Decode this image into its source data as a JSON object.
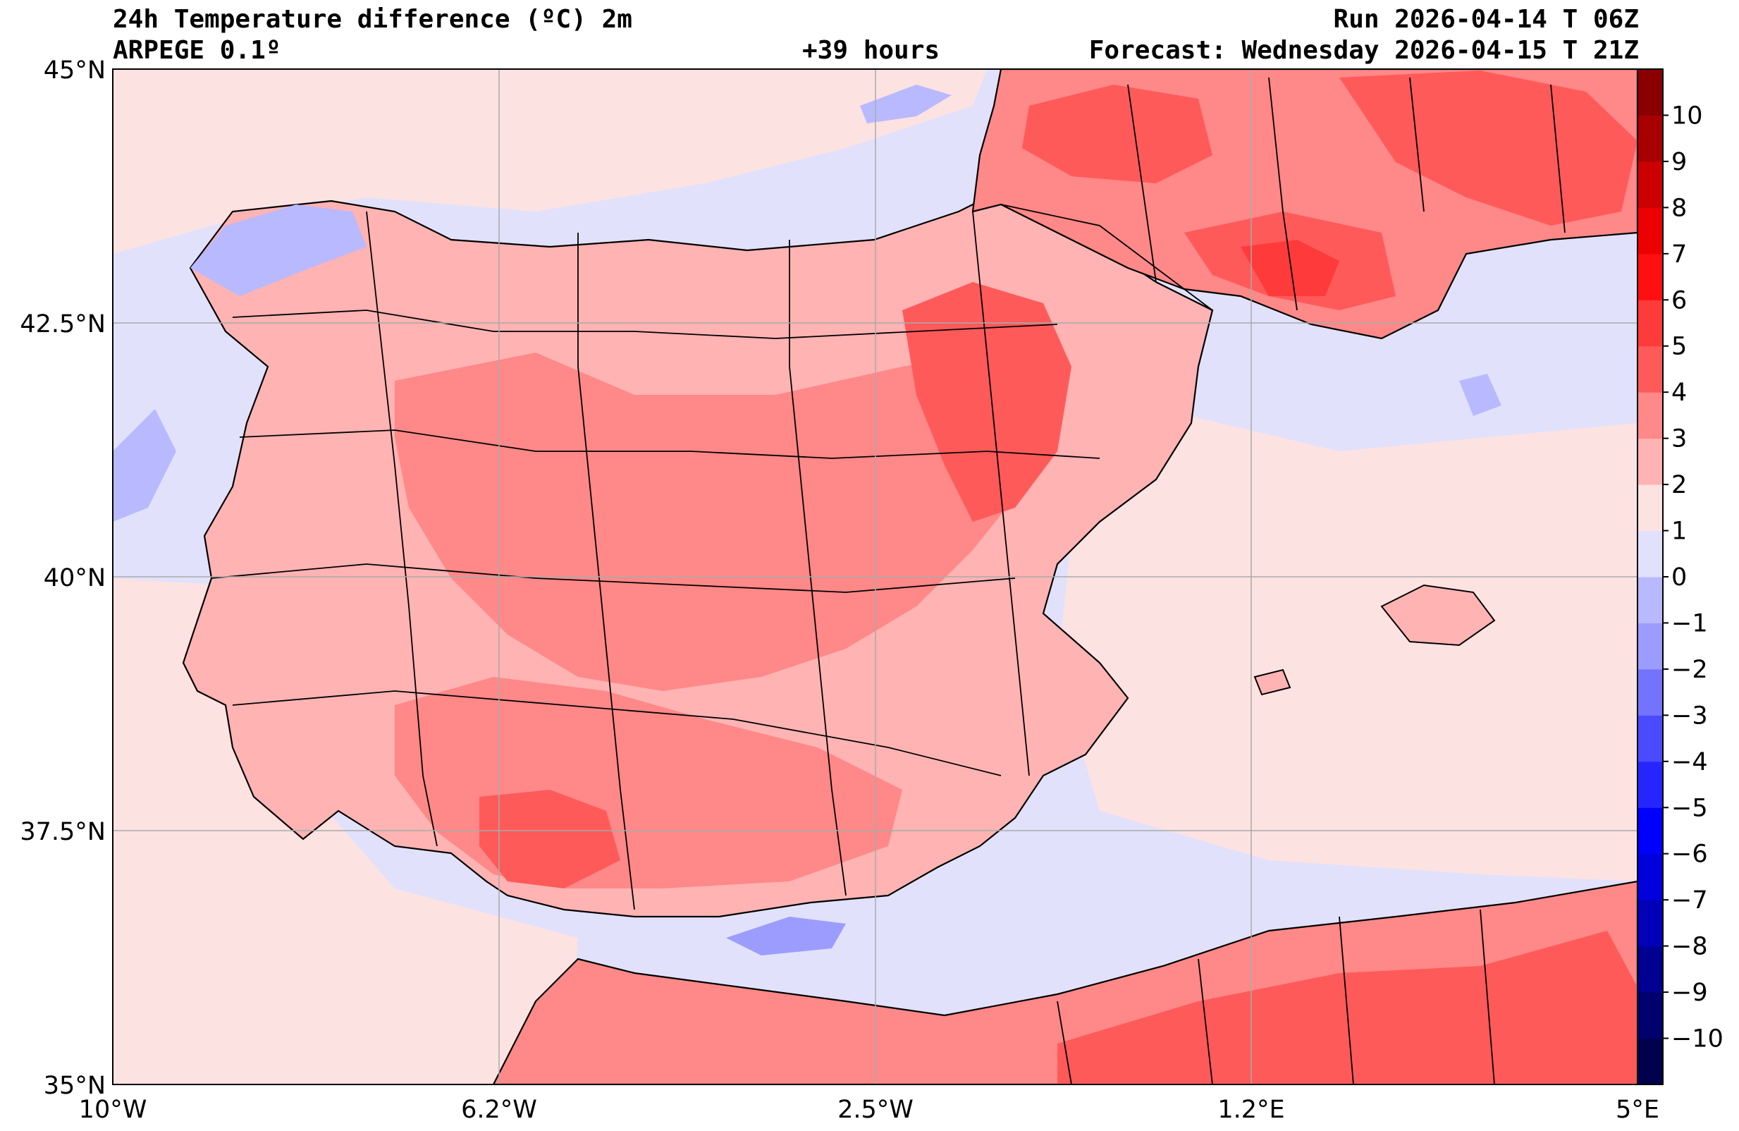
{
  "header": {
    "title": "24h Temperature difference (ºC) 2m",
    "model": "ARPEGE 0.1º",
    "lead": "+39 hours",
    "run": "Run 2026-04-14 T 06Z",
    "forecast": "Forecast: Wednesday 2026-04-15 T 21Z"
  },
  "axes": {
    "lon_labels": [
      "10°W",
      "6.2°W",
      "2.5°W",
      "1.2°E",
      "5°E"
    ],
    "lat_labels": [
      "45°N",
      "42.5°N",
      "40°N",
      "37.5°N",
      "35°N"
    ],
    "lon_range": [
      -10,
      5
    ],
    "lat_range": [
      35,
      45
    ],
    "grid": true
  },
  "colorbar": {
    "levels": [
      -11,
      -10,
      -9,
      -8,
      -7,
      -6,
      -5,
      -4,
      -3,
      -2,
      -1,
      0,
      1,
      2,
      3,
      4,
      5,
      6,
      7,
      8,
      9,
      10,
      11
    ],
    "colors": [
      "#00004d",
      "#00006e",
      "#000093",
      "#0000b8",
      "#0000dd",
      "#0000ff",
      "#2525ff",
      "#4a4aff",
      "#7373ff",
      "#9c9cff",
      "#b9b9ff",
      "#e1e1fb",
      "#fde2e2",
      "#ffb3b3",
      "#ff8888",
      "#ff5a5a",
      "#ff3a3a",
      "#ff0f0f",
      "#ec0000",
      "#cc0000",
      "#a80000",
      "#8a0000"
    ],
    "tick_labels": [
      "−10",
      "−9",
      "−8",
      "−7",
      "−6",
      "−5",
      "−4",
      "−3",
      "−2",
      "−1",
      "0",
      "1",
      "2",
      "3",
      "4",
      "5",
      "6",
      "7",
      "8",
      "9",
      "10"
    ]
  }
}
